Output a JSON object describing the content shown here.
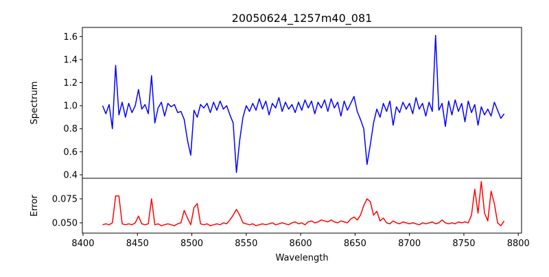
{
  "chart_data": {
    "type": "line",
    "title": "20050624_1257m40_081",
    "xlabel": "Wavelength",
    "xlim": [
      8399.4,
      8803
    ],
    "xticks": [
      8400,
      8450,
      8500,
      8550,
      8600,
      8650,
      8700,
      8750,
      8800
    ],
    "x_start": 8418,
    "x_step": 3,
    "panels": [
      {
        "name": "spectrum",
        "ylabel": "Spectrum",
        "color": "#0000ff",
        "ylim": [
          0.37,
          1.679
        ],
        "yticks": [
          "0.4",
          "0.6",
          "0.8",
          "1.0",
          "1.2",
          "1.4",
          "1.6"
        ],
        "values": [
          1.0,
          0.93,
          1.01,
          0.8,
          1.35,
          0.92,
          1.03,
          0.9,
          1.02,
          0.94,
          1.0,
          1.14,
          0.97,
          1.01,
          0.93,
          1.26,
          0.85,
          0.98,
          1.03,
          0.91,
          1.02,
          0.99,
          1.01,
          0.94,
          0.95,
          0.88,
          0.7,
          0.57,
          0.96,
          0.9,
          1.01,
          0.98,
          1.02,
          0.94,
          1.03,
          0.96,
          1.04,
          0.97,
          1.0,
          0.92,
          0.85,
          0.42,
          0.7,
          0.9,
          1.0,
          0.95,
          1.02,
          0.96,
          1.06,
          0.97,
          1.04,
          0.92,
          1.02,
          0.98,
          1.07,
          0.95,
          1.03,
          0.97,
          1.01,
          0.94,
          1.03,
          0.96,
          1.05,
          0.98,
          1.04,
          0.93,
          1.03,
          0.98,
          1.05,
          0.95,
          1.06,
          0.98,
          1.03,
          0.91,
          1.04,
          0.96,
          1.02,
          1.08,
          0.95,
          0.88,
          0.8,
          0.49,
          0.66,
          0.85,
          0.97,
          0.9,
          1.02,
          0.95,
          1.04,
          0.83,
          0.99,
          0.94,
          1.03,
          0.97,
          1.02,
          0.93,
          1.07,
          0.97,
          1.02,
          0.91,
          1.03,
          0.95,
          1.61,
          0.96,
          1.02,
          0.82,
          1.04,
          0.92,
          1.05,
          0.95,
          1.02,
          0.86,
          1.04,
          0.94,
          1.01,
          0.83,
          0.99,
          0.92,
          0.97,
          0.91,
          1.03,
          0.96,
          0.89,
          0.93
        ]
      },
      {
        "name": "error",
        "ylabel": "Error",
        "color": "#ff0000",
        "ylim": [
          0.0393,
          0.0964
        ],
        "yticks": [
          "0.050",
          "0.075"
        ],
        "values": [
          0.048,
          0.049,
          0.048,
          0.05,
          0.078,
          0.078,
          0.049,
          0.048,
          0.049,
          0.048,
          0.05,
          0.057,
          0.049,
          0.048,
          0.049,
          0.075,
          0.048,
          0.049,
          0.047,
          0.048,
          0.049,
          0.048,
          0.047,
          0.049,
          0.05,
          0.063,
          0.055,
          0.048,
          0.066,
          0.07,
          0.049,
          0.048,
          0.049,
          0.047,
          0.048,
          0.049,
          0.048,
          0.05,
          0.049,
          0.053,
          0.058,
          0.064,
          0.058,
          0.05,
          0.049,
          0.048,
          0.049,
          0.047,
          0.048,
          0.049,
          0.048,
          0.049,
          0.05,
          0.048,
          0.049,
          0.05,
          0.049,
          0.048,
          0.05,
          0.051,
          0.049,
          0.05,
          0.048,
          0.051,
          0.052,
          0.05,
          0.051,
          0.053,
          0.052,
          0.051,
          0.053,
          0.051,
          0.05,
          0.052,
          0.051,
          0.05,
          0.054,
          0.056,
          0.053,
          0.058,
          0.068,
          0.075,
          0.072,
          0.058,
          0.062,
          0.052,
          0.055,
          0.05,
          0.049,
          0.052,
          0.05,
          0.049,
          0.051,
          0.05,
          0.049,
          0.05,
          0.049,
          0.048,
          0.05,
          0.049,
          0.05,
          0.051,
          0.049,
          0.05,
          0.053,
          0.05,
          0.049,
          0.05,
          0.049,
          0.051,
          0.05,
          0.051,
          0.05,
          0.058,
          0.085,
          0.06,
          0.093,
          0.06,
          0.052,
          0.083,
          0.07,
          0.05,
          0.047,
          0.052
        ]
      }
    ]
  }
}
